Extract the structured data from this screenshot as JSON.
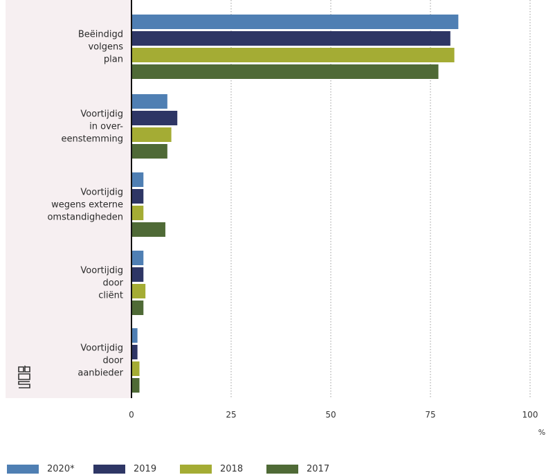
{
  "chart_data": {
    "type": "bar",
    "orientation": "horizontal",
    "categories": [
      [
        "Beëindigd",
        "volgens",
        "plan"
      ],
      [
        "Voortijdig",
        "in over-",
        "eenstemming"
      ],
      [
        "Voortijdig",
        "wegens externe",
        "omstandigheden"
      ],
      [
        "Voortijdig",
        "door",
        "cliënt"
      ],
      [
        "Voortijdig",
        "door",
        "aanbieder"
      ]
    ],
    "series": [
      {
        "name": "2020*",
        "color": "#4f7fb3",
        "values": [
          82,
          9,
          3,
          3,
          1.5
        ]
      },
      {
        "name": "2019",
        "color": "#2e3665",
        "values": [
          80,
          11.5,
          3,
          3,
          1.5
        ]
      },
      {
        "name": "2018",
        "color": "#a4ac34",
        "values": [
          81,
          10,
          3,
          3.5,
          2
        ]
      },
      {
        "name": "2017",
        "color": "#4f6a36",
        "values": [
          77,
          9,
          8.5,
          3,
          2
        ]
      }
    ],
    "xlim": [
      0,
      100
    ],
    "xticks": [
      0,
      25,
      50,
      75,
      100
    ],
    "xtick_labels": [
      "0",
      "25",
      "50",
      "75",
      "100"
    ],
    "unit": "%",
    "grid": "vertical-dotted",
    "legend_position": "bottom",
    "panel_color": "#f6eff1"
  },
  "logo": {
    "name": "cbs-logo",
    "text": "cbs"
  }
}
